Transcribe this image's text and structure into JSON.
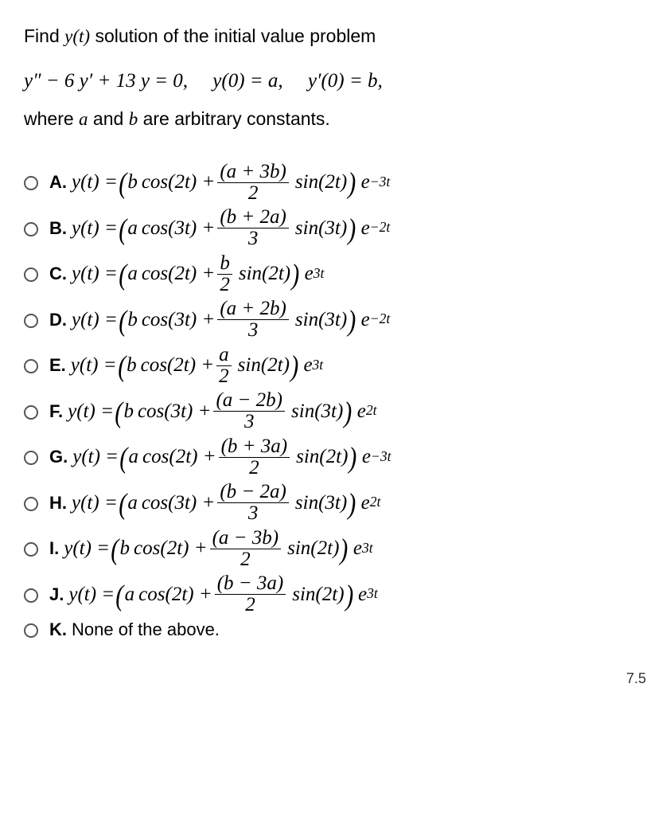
{
  "prompt_prefix": "Find ",
  "prompt_yt": "y(t)",
  "prompt_suffix": " solution of the initial value problem",
  "equation_parts": {
    "ode_lhs_1": "y″ − 6 y′ + 13 y = 0,",
    "ic1_lhs": "y(0) = a,",
    "ic2_lhs": "y′(0) = b,"
  },
  "sub_note_prefix": "where ",
  "sub_note_a": "a",
  "sub_note_mid": " and ",
  "sub_note_b": "b",
  "sub_note_suffix": " are arbitrary constants.",
  "options": [
    {
      "label": "A.",
      "lead_coef": "b",
      "trig1": "cos(2t)",
      "frac_num": "(a + 3b)",
      "frac_den": "2",
      "trig2": "sin(2t)",
      "exp_coef": "e",
      "exp_sup": "−3t"
    },
    {
      "label": "B.",
      "lead_coef": "a",
      "trig1": "cos(3t)",
      "frac_num": "(b + 2a)",
      "frac_den": "3",
      "trig2": "sin(3t)",
      "exp_coef": "e",
      "exp_sup": "−2t"
    },
    {
      "label": "C.",
      "lead_coef": "a",
      "trig1": "cos(2t)",
      "frac_num": "b",
      "frac_den": "2",
      "trig2": "sin(2t)",
      "exp_coef": "e",
      "exp_sup": "3t"
    },
    {
      "label": "D.",
      "lead_coef": "b",
      "trig1": "cos(3t)",
      "frac_num": "(a + 2b)",
      "frac_den": "3",
      "trig2": "sin(3t)",
      "exp_coef": "e",
      "exp_sup": "−2t"
    },
    {
      "label": "E.",
      "lead_coef": "b",
      "trig1": "cos(2t)",
      "frac_num": "a",
      "frac_den": "2",
      "trig2": "sin(2t)",
      "exp_coef": "e",
      "exp_sup": "3t"
    },
    {
      "label": "F.",
      "lead_coef": "b",
      "trig1": "cos(3t)",
      "frac_num": "(a − 2b)",
      "frac_den": "3",
      "trig2": "sin(3t)",
      "exp_coef": "e",
      "exp_sup": "2t"
    },
    {
      "label": "G.",
      "lead_coef": "a",
      "trig1": "cos(2t)",
      "frac_num": "(b + 3a)",
      "frac_den": "2",
      "trig2": "sin(2t)",
      "exp_coef": "e",
      "exp_sup": "−3t"
    },
    {
      "label": "H.",
      "lead_coef": "a",
      "trig1": "cos(3t)",
      "frac_num": "(b − 2a)",
      "frac_den": "3",
      "trig2": "sin(3t)",
      "exp_coef": "e",
      "exp_sup": "2t"
    },
    {
      "label": "I.",
      "lead_coef": "b",
      "trig1": "cos(2t)",
      "frac_num": "(a − 3b)",
      "frac_den": "2",
      "trig2": "sin(2t)",
      "exp_coef": "e",
      "exp_sup": "3t"
    },
    {
      "label": "J.",
      "lead_coef": "a",
      "trig1": "cos(2t)",
      "frac_num": "(b − 3a)",
      "frac_den": "2",
      "trig2": "sin(2t)",
      "exp_coef": "e",
      "exp_sup": "3t"
    }
  ],
  "option_k_label": "K.",
  "option_k_text": "None of the above.",
  "yt_eq": "y(t) = ",
  "footer": "7.5"
}
